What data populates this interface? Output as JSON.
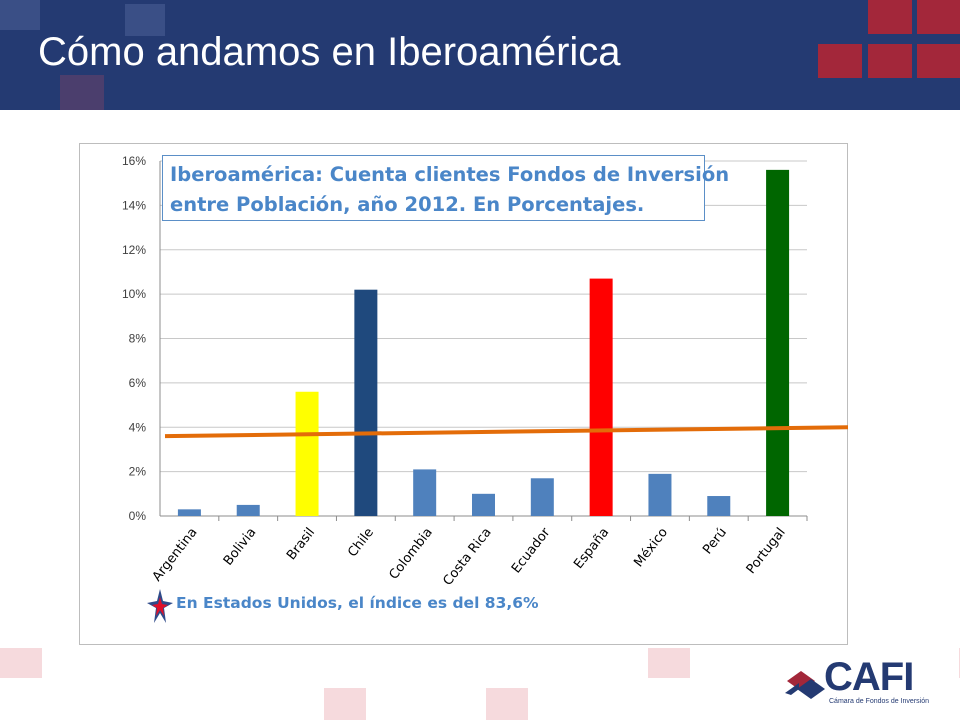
{
  "slide": {
    "title": "Cómo andamos en Iberoamérica",
    "header_color": "#243a72",
    "accent_color": "#a3273a"
  },
  "chart_data": {
    "type": "bar",
    "title_lines": [
      "Iberoamérica:  Cuenta clientes Fondos de Inversión",
      " entre Población, año 2012.  En Porcentajes."
    ],
    "categories": [
      "Argentina",
      "Bolivia",
      "Brasil",
      "Chile",
      "Colombia",
      "Costa Rica",
      "Ecuador",
      "España",
      "México",
      "Perú",
      "Portugal"
    ],
    "values": [
      0.3,
      0.5,
      5.6,
      10.2,
      2.1,
      1.0,
      1.7,
      10.7,
      1.9,
      0.9,
      15.6
    ],
    "colors": [
      "#4f81bd",
      "#4f81bd",
      "#ffff00",
      "#1f497d",
      "#4f81bd",
      "#4f81bd",
      "#4f81bd",
      "#ff0000",
      "#4f81bd",
      "#4f81bd",
      "#006600"
    ],
    "yticks": [
      "0%",
      "2%",
      "4%",
      "6%",
      "8%",
      "10%",
      "12%",
      "14%",
      "16%"
    ],
    "ylim": [
      0,
      16
    ],
    "trend_line": {
      "color": "#e36c09",
      "start": 3.6,
      "end": 4.0
    },
    "grid": true,
    "note": "En Estados Unidos, el índice es del 83,6%"
  },
  "logo": {
    "name": "CAFI",
    "subtitle": "Cámara de Fondos de Inversión"
  }
}
